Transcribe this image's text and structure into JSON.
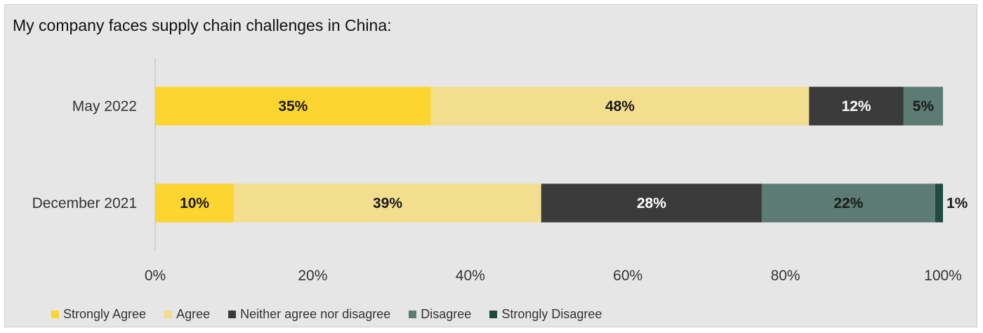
{
  "chart_data": {
    "type": "bar",
    "orientation": "horizontal",
    "stacked": true,
    "title": "My company faces supply chain challenges in China:",
    "categories": [
      "May 2022",
      "December 2021"
    ],
    "series": [
      {
        "name": "Strongly Agree",
        "color": "#fcd531",
        "label_color": "#1a1a1a",
        "values": [
          35,
          10
        ],
        "labels": [
          "35%",
          "10%"
        ]
      },
      {
        "name": "Agree",
        "color": "#f3de8d",
        "label_color": "#1a1a1a",
        "values": [
          48,
          39
        ],
        "labels": [
          "48%",
          "39%"
        ]
      },
      {
        "name": "Neither agree nor disagree",
        "color": "#3b3b3b",
        "label_color": "#ffffff",
        "values": [
          12,
          28
        ],
        "labels": [
          "12%",
          "28%"
        ]
      },
      {
        "name": "Disagree",
        "color": "#5b7b73",
        "label_color": "#1a1a1a",
        "values": [
          5,
          22
        ],
        "labels": [
          "5%",
          "22%"
        ]
      },
      {
        "name": "Strongly Disagree",
        "color": "#1e4c40",
        "label_color": "#1a1a1a",
        "values": [
          0,
          1
        ],
        "labels": [
          "",
          "1%"
        ]
      }
    ],
    "xlim": [
      0,
      100
    ],
    "xticks": [
      0,
      20,
      40,
      60,
      80,
      100
    ],
    "xtick_labels": [
      "0%",
      "20%",
      "40%",
      "60%",
      "80%",
      "100%"
    ],
    "grid": false,
    "legend": "bottom"
  }
}
